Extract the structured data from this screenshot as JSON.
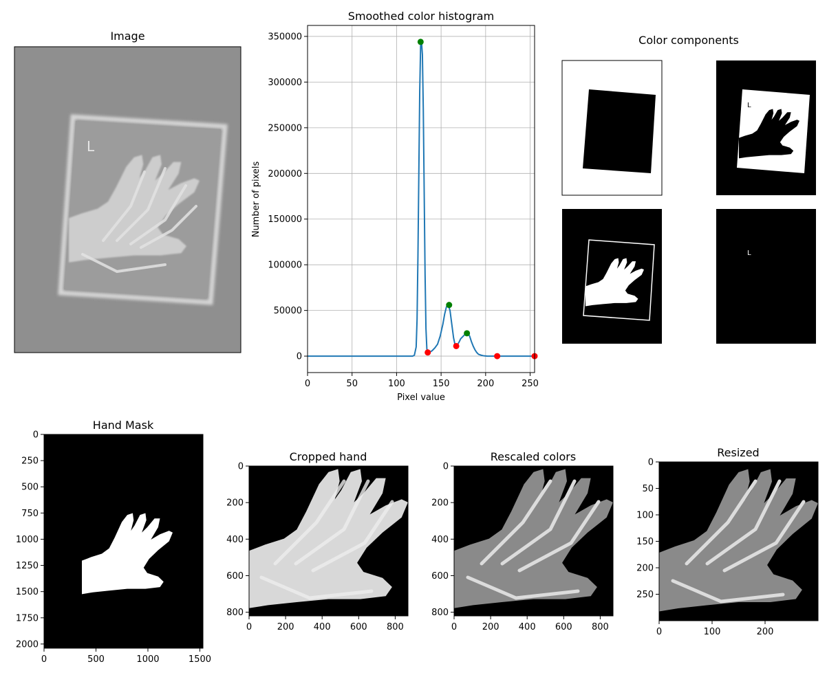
{
  "panels": {
    "image": {
      "title": "Image"
    },
    "components": {
      "title": "Color components",
      "marker_text": "L"
    },
    "mask": {
      "title": "Hand Mask"
    },
    "cropped": {
      "title": "Cropped hand"
    },
    "rescaled": {
      "title": "Rescaled colors"
    },
    "resized": {
      "title": "Resized"
    }
  },
  "chart_data": [
    {
      "type": "line",
      "title": "Smoothed color histogram",
      "xlabel": "Pixel value",
      "ylabel": "Number of pixels",
      "xlim": [
        0,
        255
      ],
      "ylim": [
        -18000,
        362000
      ],
      "xticks": [
        0,
        50,
        100,
        150,
        200,
        250
      ],
      "yticks": [
        0,
        50000,
        100000,
        150000,
        200000,
        250000,
        300000,
        350000
      ],
      "grid": true,
      "line_color": "#1f77b4",
      "series": [
        {
          "x": [
            0,
            100,
            118,
            120,
            122,
            123,
            124,
            125,
            126,
            127,
            128,
            129,
            130,
            131,
            132,
            133,
            134,
            135,
            137,
            140,
            143,
            146,
            149,
            152,
            154,
            156,
            158,
            160,
            162,
            164,
            166,
            168,
            170,
            172,
            174,
            176,
            178,
            180,
            182,
            184,
            186,
            188,
            190,
            192,
            195,
            198,
            202,
            206,
            212,
            220,
            240,
            255
          ],
          "y": [
            0,
            0,
            0,
            1000,
            10000,
            40000,
            110000,
            200000,
            290000,
            340000,
            344000,
            330000,
            270000,
            180000,
            90000,
            30000,
            8000,
            4000,
            4000,
            6000,
            9000,
            13000,
            22000,
            35000,
            46000,
            54000,
            56000,
            50000,
            35000,
            20000,
            11000,
            12000,
            15000,
            19000,
            21000,
            23000,
            25000,
            25000,
            22000,
            16000,
            11000,
            7000,
            4000,
            2000,
            1000,
            300,
            0,
            0,
            0,
            0,
            0,
            0
          ]
        }
      ],
      "peaks": {
        "color": "#008000",
        "points": [
          [
            127,
            344000
          ],
          [
            159,
            56000
          ],
          [
            179,
            25000
          ]
        ]
      },
      "valleys": {
        "color": "#ff0000",
        "points": [
          [
            135,
            4000
          ],
          [
            167,
            11000
          ],
          [
            213,
            0
          ],
          [
            255,
            0
          ]
        ]
      }
    },
    {
      "type": "image",
      "title": "Hand Mask",
      "xlim": [
        0,
        1530
      ],
      "ylim": [
        2040,
        0
      ],
      "xticks": [
        0,
        500,
        1000,
        1500
      ],
      "yticks": [
        0,
        250,
        500,
        750,
        1000,
        1250,
        1500,
        1750,
        2000
      ]
    },
    {
      "type": "image",
      "title": "Cropped hand",
      "xlim": [
        0,
        870
      ],
      "ylim": [
        820,
        0
      ],
      "xticks": [
        0,
        200,
        400,
        600,
        800
      ],
      "yticks": [
        0,
        200,
        400,
        600,
        800
      ]
    },
    {
      "type": "image",
      "title": "Rescaled colors",
      "xlim": [
        0,
        870
      ],
      "ylim": [
        820,
        0
      ],
      "xticks": [
        0,
        200,
        400,
        600,
        800
      ],
      "yticks": [
        0,
        200,
        400,
        600,
        800
      ]
    },
    {
      "type": "image",
      "title": "Resized",
      "xlim": [
        0,
        300
      ],
      "ylim": [
        300,
        0
      ],
      "xticks": [
        0,
        100,
        200
      ],
      "yticks": [
        0,
        50,
        100,
        150,
        200,
        250
      ]
    }
  ]
}
